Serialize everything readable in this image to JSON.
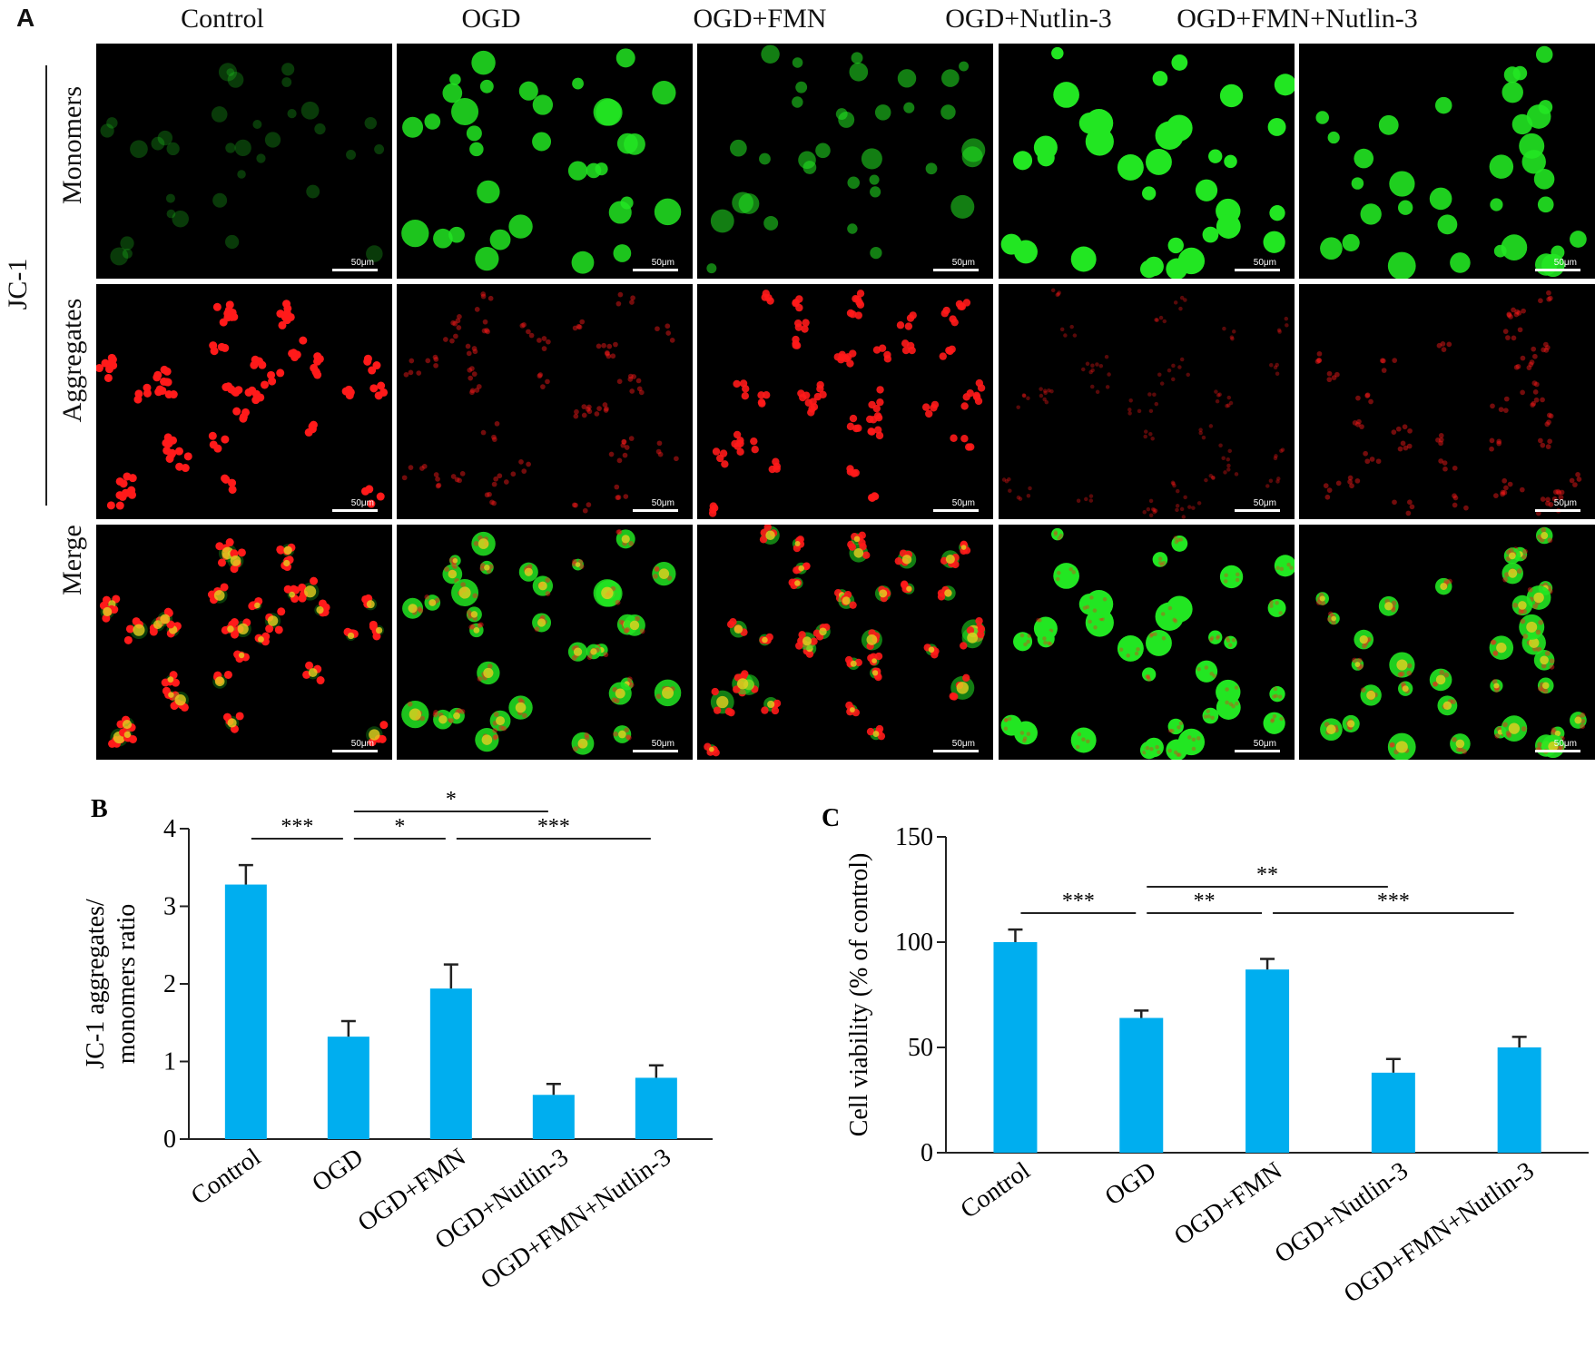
{
  "panel_a": {
    "letter": "A",
    "columns": [
      "Control",
      "OGD",
      "OGD+FMN",
      "OGD+Nutlin-3",
      "OGD+FMN+Nutlin-3"
    ],
    "group_label": "JC-1",
    "rows": [
      "Monomers",
      "Aggregates",
      "Merge"
    ],
    "scale_bar": "50μm",
    "colors": {
      "monomer": "#22e622",
      "aggregate": "#ff1a1a",
      "merge": "#e6d020"
    },
    "monomer_intensity": [
      0.15,
      0.85,
      0.55,
      1.0,
      0.9
    ],
    "aggregate_intensity": [
      1.0,
      0.45,
      0.9,
      0.25,
      0.45
    ]
  },
  "chart_data": [
    {
      "letter": "B",
      "type": "bar",
      "categories": [
        "Control",
        "OGD",
        "OGD+FMN",
        "OGD+Nutlin-3",
        "OGD+FMN+Nutlin-3"
      ],
      "values": [
        3.28,
        1.32,
        1.94,
        0.57,
        0.79
      ],
      "errors": [
        0.25,
        0.2,
        0.31,
        0.14,
        0.16
      ],
      "ylabel": [
        "JC-1 aggregates/",
        "monomers ratio"
      ],
      "ylim": [
        0,
        4
      ],
      "yticks": [
        0,
        1,
        2,
        3,
        4
      ],
      "bar_color": "#00aeef",
      "significance": [
        {
          "from": 0,
          "to": 1,
          "label": "***",
          "level": 0
        },
        {
          "from": 1,
          "to": 2,
          "label": "*",
          "level": 0
        },
        {
          "from": 2,
          "to": 4,
          "label": "***",
          "level": 0
        },
        {
          "from": 1,
          "to": 3,
          "label": "*",
          "level": 1
        }
      ]
    },
    {
      "letter": "C",
      "type": "bar",
      "categories": [
        "Control",
        "OGD",
        "OGD+FMN",
        "OGD+Nutlin-3",
        "OGD+FMN+Nutlin-3"
      ],
      "values": [
        100,
        64,
        87,
        38,
        50
      ],
      "errors": [
        6,
        3.5,
        5,
        6.5,
        5
      ],
      "ylabel": [
        "Cell viability (% of control)"
      ],
      "ylim": [
        0,
        150
      ],
      "yticks": [
        0,
        50,
        100,
        150
      ],
      "bar_color": "#00aeef",
      "significance": [
        {
          "from": 0,
          "to": 1,
          "label": "***",
          "level": 0
        },
        {
          "from": 1,
          "to": 2,
          "label": "**",
          "level": 0
        },
        {
          "from": 2,
          "to": 4,
          "label": "***",
          "level": 0
        },
        {
          "from": 1,
          "to": 3,
          "label": "**",
          "level": 1
        }
      ]
    }
  ]
}
